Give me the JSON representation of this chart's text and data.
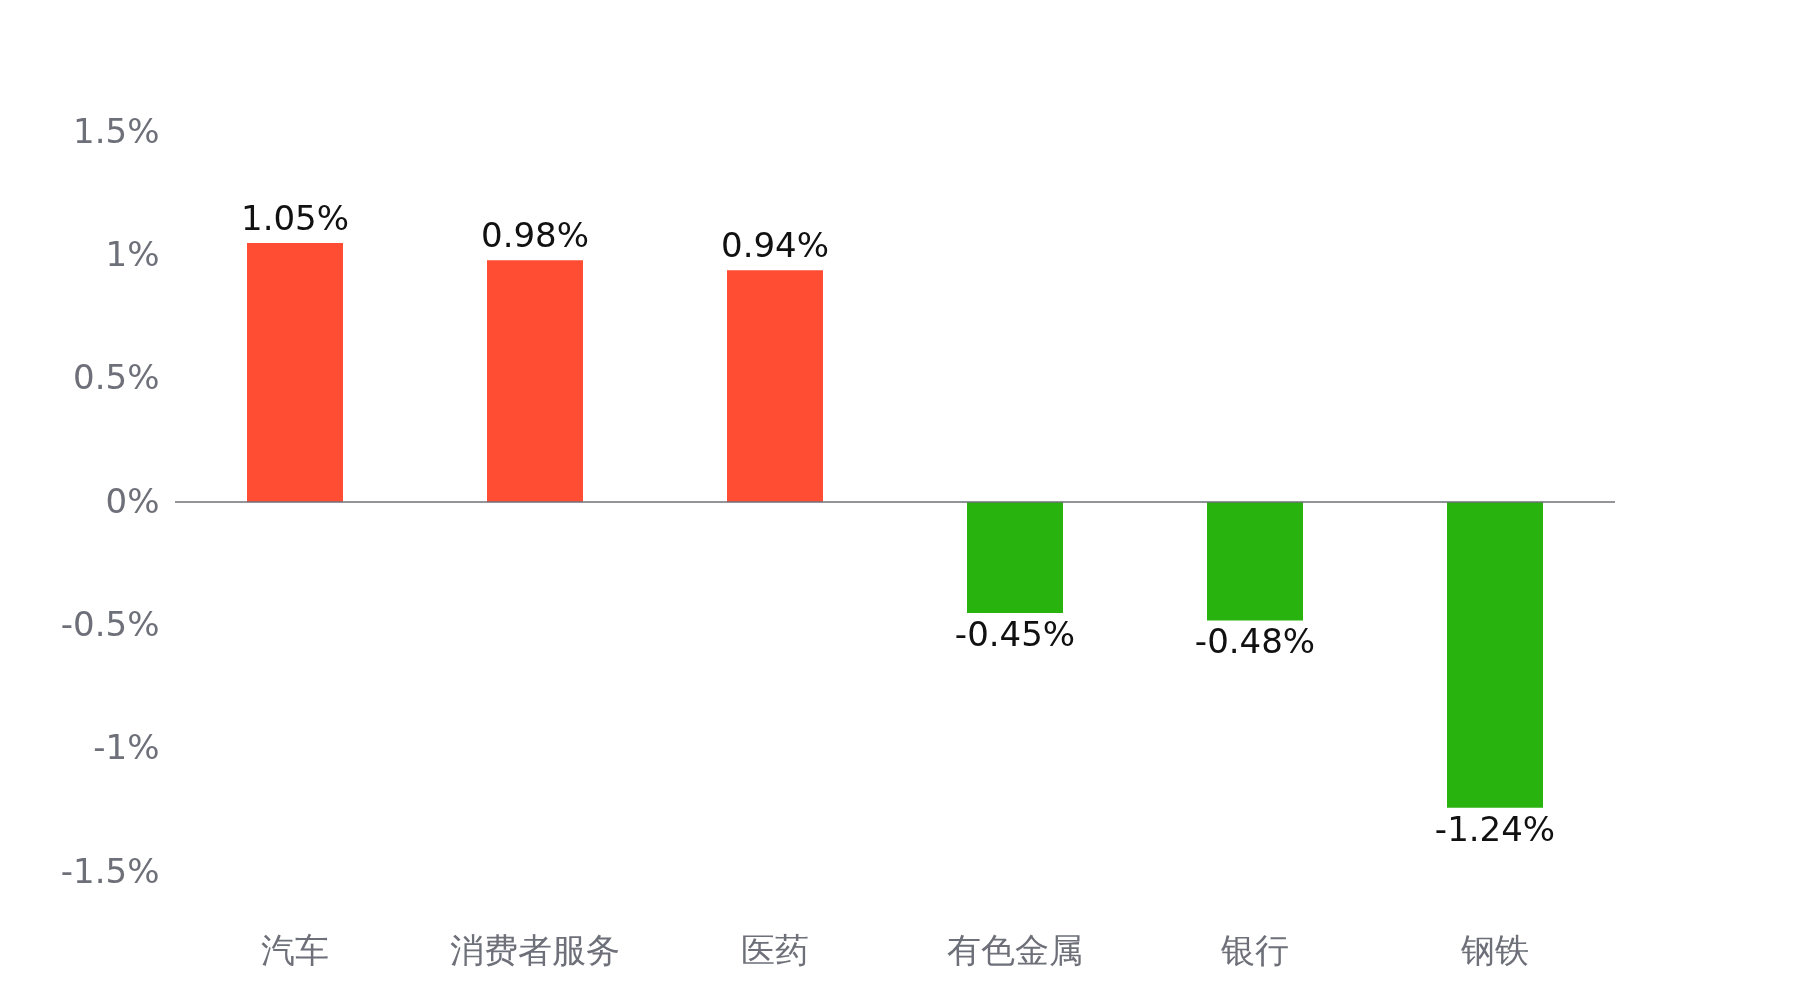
{
  "chart_data": {
    "type": "bar",
    "categories": [
      "汽车",
      "消费者服务",
      "医药",
      "有色金属",
      "银行",
      "钢铁"
    ],
    "values": [
      1.05,
      0.98,
      0.94,
      -0.45,
      -0.48,
      -1.24
    ],
    "colors": [
      "#ff4d33",
      "#ff4d33",
      "#ff4d33",
      "#28b30f",
      "#28b30f",
      "#28b30f"
    ],
    "value_labels": [
      "1.05%",
      "0.98%",
      "0.94%",
      "-0.45%",
      "-0.48%",
      "-1.24%"
    ],
    "ylim": [
      -1.5,
      1.5
    ],
    "yticks": [
      {
        "value": -1.5,
        "label": "-1.5%"
      },
      {
        "value": -1,
        "label": "-1%"
      },
      {
        "value": -0.5,
        "label": "-0.5%"
      },
      {
        "value": 0,
        "label": "0%"
      },
      {
        "value": 0.5,
        "label": "0.5%"
      },
      {
        "value": 1,
        "label": "1%"
      },
      {
        "value": 1.5,
        "label": "1.5%"
      }
    ]
  }
}
